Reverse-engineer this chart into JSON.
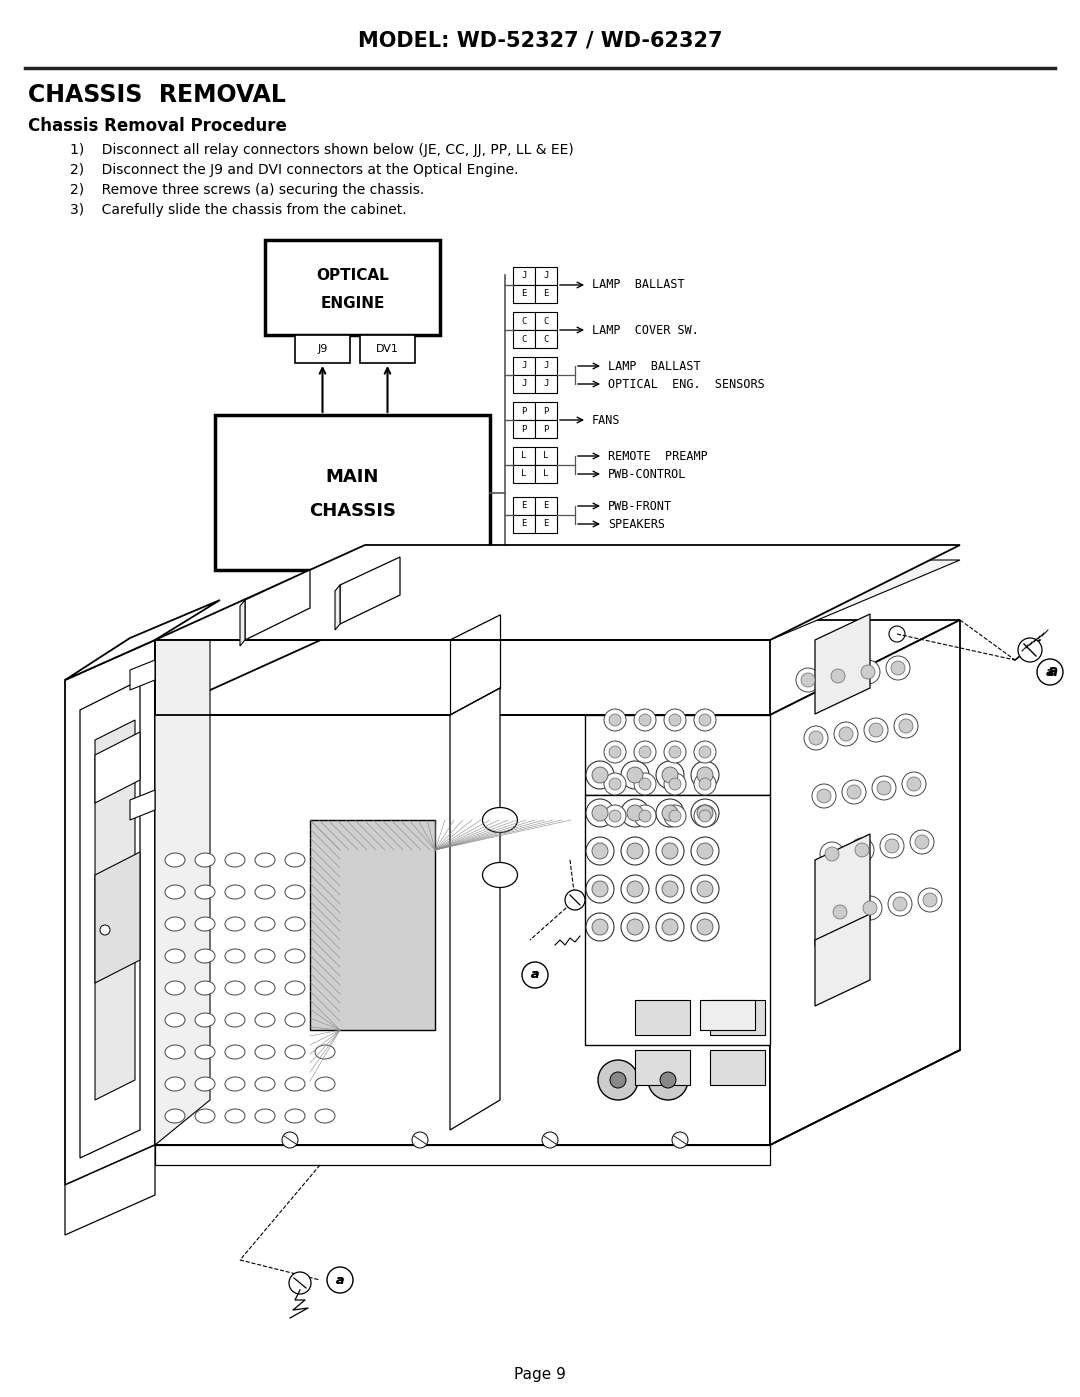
{
  "title": "MODEL: WD-52327 / WD-62327",
  "section_title": "CHASSIS  REMOVAL",
  "subsection_title": "Chassis Removal Procedure",
  "steps": [
    "1)    Disconnect all relay connectors shown below (JE, CC, JJ, PP, LL & EE)",
    "2)    Disconnect the J9 and DVI connectors at the Optical Engine.",
    "2)    Remove three screws (a) securing the chassis.",
    "3)    Carefully slide the chassis from the cabinet."
  ],
  "page_label": "Page 9",
  "bg_color": "#ffffff",
  "text_color": "#000000"
}
